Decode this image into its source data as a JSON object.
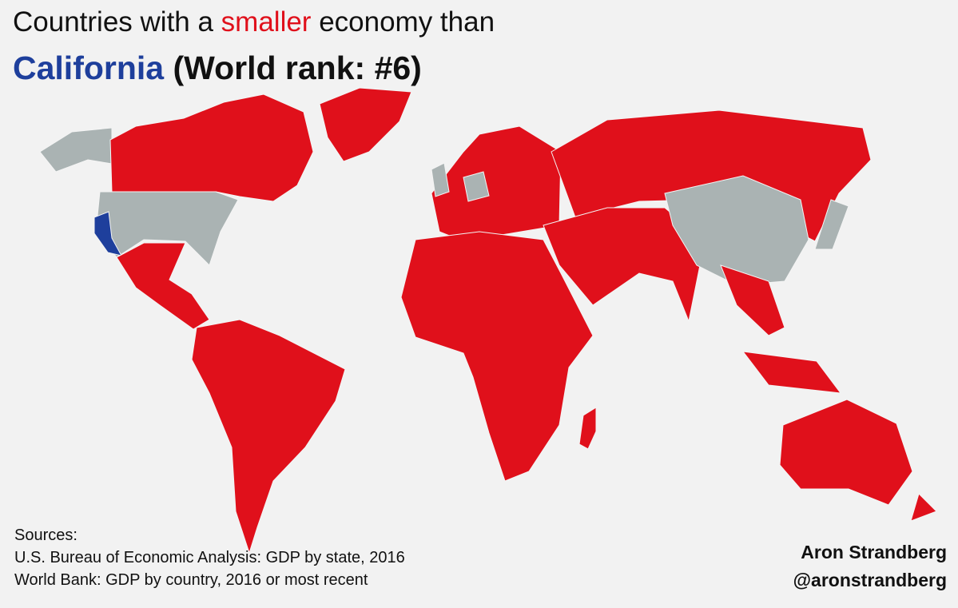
{
  "title": {
    "line1": {
      "before": "Countries with a ",
      "highlight": "smaller",
      "after": " economy than"
    },
    "line2": {
      "highlight": "California",
      "after": " (World rank: #6)"
    }
  },
  "sources": {
    "heading": "Sources:",
    "items": [
      "U.S. Bureau of Economic Analysis: GDP by state, 2016",
      "World Bank: GDP by country, 2016 or most recent"
    ]
  },
  "credit": {
    "name": "Aron Strandberg",
    "handle": "@aronstrandberg"
  }
}
